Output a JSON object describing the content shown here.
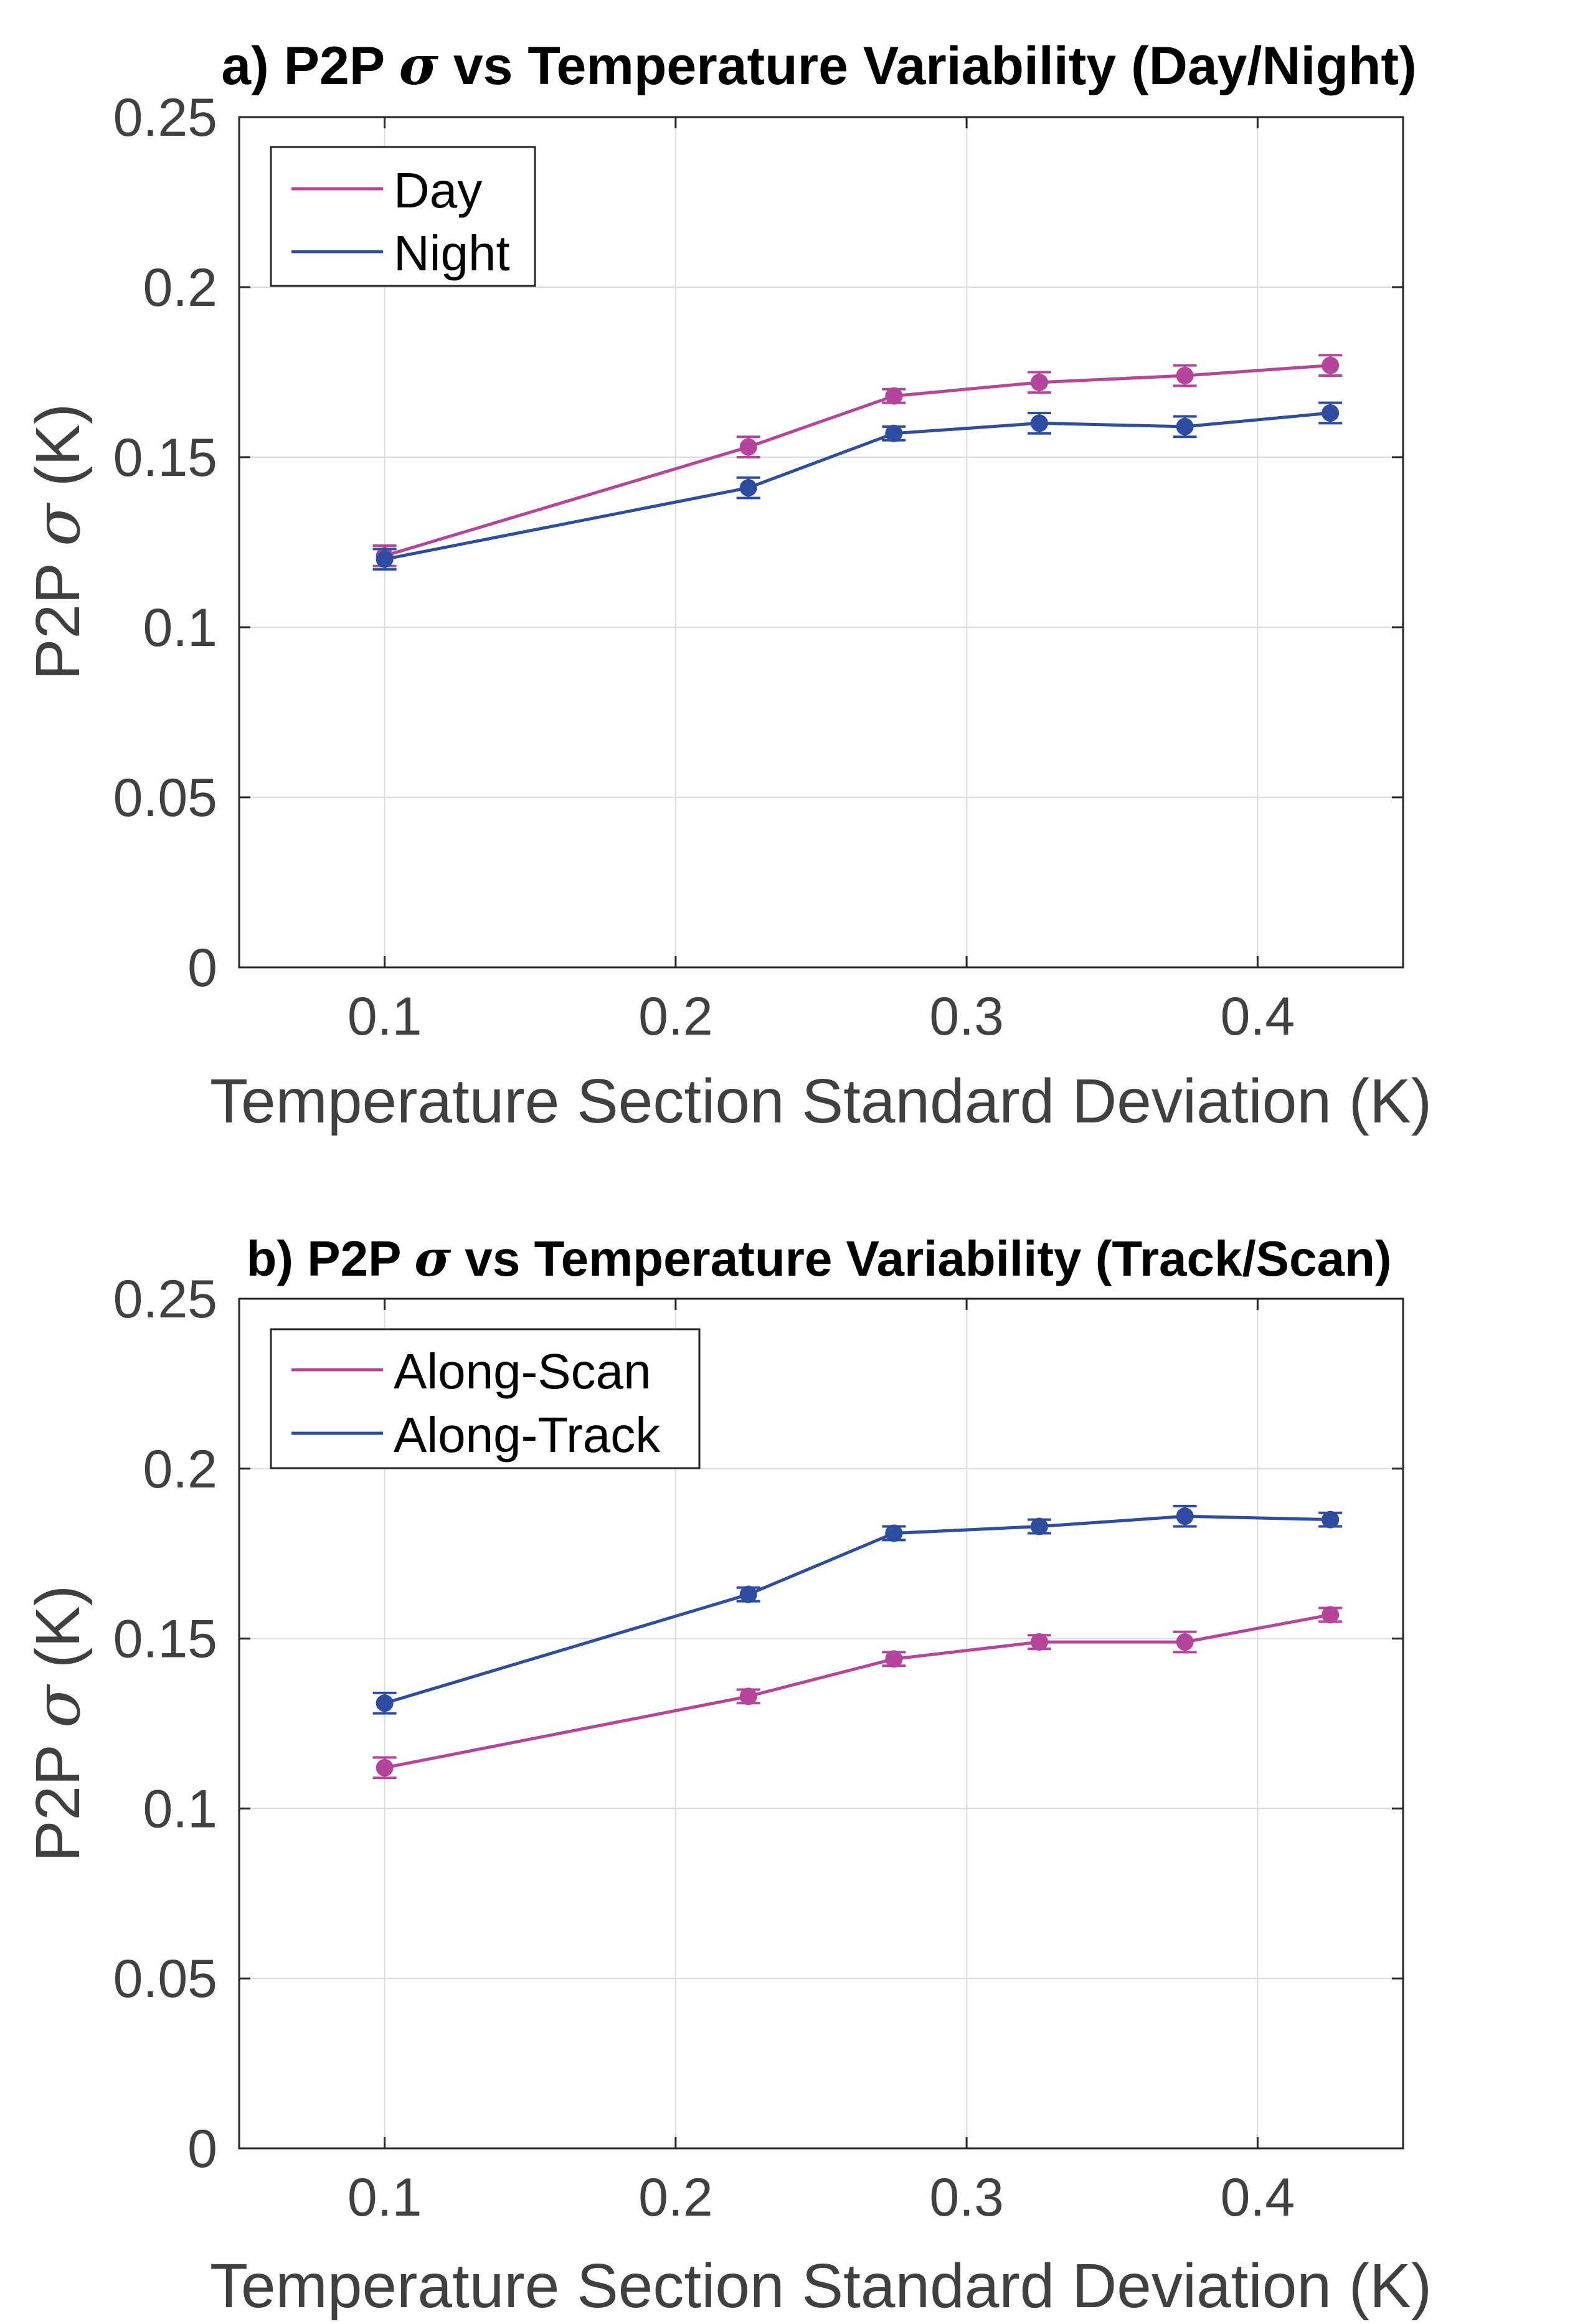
{
  "chart_data": [
    {
      "type": "line",
      "title_prefix": "a) P2P ",
      "title_symbol": "σ",
      "title_suffix": " vs Temperature Variability (Day/Night)",
      "xlabel": "Temperature Section Standard Deviation (K)",
      "ylabel_prefix": "P2P ",
      "ylabel_symbol": "σ",
      "ylabel_suffix": " (K)",
      "xlim": [
        0.05,
        0.45
      ],
      "ylim": [
        0,
        0.25
      ],
      "xticks": [
        0.1,
        0.2,
        0.3,
        0.4
      ],
      "xtick_labels": [
        "0.1",
        "0.2",
        "0.3",
        "0.4"
      ],
      "yticks": [
        0,
        0.05,
        0.1,
        0.15,
        0.2,
        0.25
      ],
      "ytick_labels": [
        "0",
        "0.05",
        "0.1",
        "0.15",
        "0.2",
        "0.25"
      ],
      "grid": true,
      "legend_position": "top-left",
      "series": [
        {
          "name": "Day",
          "color": "#b5449b",
          "x": [
            0.1,
            0.225,
            0.275,
            0.325,
            0.375,
            0.425
          ],
          "y": [
            0.121,
            0.153,
            0.168,
            0.172,
            0.174,
            0.177
          ],
          "err": [
            0.003,
            0.003,
            0.002,
            0.003,
            0.003,
            0.003
          ]
        },
        {
          "name": "Night",
          "color": "#2e4ca0",
          "x": [
            0.1,
            0.225,
            0.275,
            0.325,
            0.375,
            0.425
          ],
          "y": [
            0.12,
            0.141,
            0.157,
            0.16,
            0.159,
            0.163
          ],
          "err": [
            0.003,
            0.003,
            0.002,
            0.003,
            0.003,
            0.003
          ]
        }
      ]
    },
    {
      "type": "line",
      "title_prefix": "b) P2P ",
      "title_symbol": "σ",
      "title_suffix": " vs Temperature Variability (Track/Scan)",
      "xlabel": "Temperature Section Standard Deviation (K)",
      "ylabel_prefix": "P2P ",
      "ylabel_symbol": "σ",
      "ylabel_suffix": " (K)",
      "xlim": [
        0.05,
        0.45
      ],
      "ylim": [
        0,
        0.25
      ],
      "xticks": [
        0.1,
        0.2,
        0.3,
        0.4
      ],
      "xtick_labels": [
        "0.1",
        "0.2",
        "0.3",
        "0.4"
      ],
      "yticks": [
        0,
        0.05,
        0.1,
        0.15,
        0.2,
        0.25
      ],
      "ytick_labels": [
        "0",
        "0.05",
        "0.1",
        "0.15",
        "0.2",
        "0.25"
      ],
      "grid": true,
      "legend_position": "top-left",
      "series": [
        {
          "name": "Along-Scan",
          "color": "#b5449b",
          "x": [
            0.1,
            0.225,
            0.275,
            0.325,
            0.375,
            0.425
          ],
          "y": [
            0.112,
            0.133,
            0.144,
            0.149,
            0.149,
            0.157
          ],
          "err": [
            0.003,
            0.002,
            0.002,
            0.002,
            0.003,
            0.002
          ]
        },
        {
          "name": "Along-Track",
          "color": "#2e4ca0",
          "x": [
            0.1,
            0.225,
            0.275,
            0.325,
            0.375,
            0.425
          ],
          "y": [
            0.131,
            0.163,
            0.181,
            0.183,
            0.186,
            0.185
          ],
          "err": [
            0.003,
            0.002,
            0.002,
            0.002,
            0.003,
            0.002
          ]
        }
      ]
    }
  ]
}
